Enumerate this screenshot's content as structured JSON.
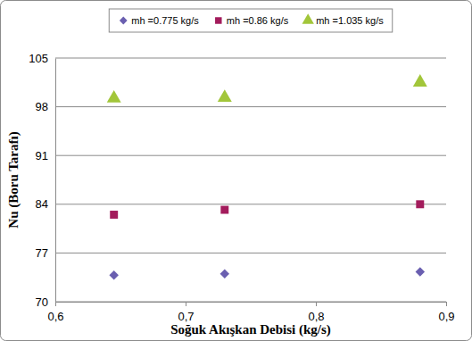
{
  "chart_data": {
    "type": "scatter",
    "x_label": "Soğuk Akışkan Debisi (kg/s)",
    "y_label": "Nu (Boru Tarafı)",
    "x": [
      0.645,
      0.73,
      0.88
    ],
    "series": [
      {
        "name": "mh =0.775 kg/s",
        "color": "#6a5fb0",
        "marker": "diamond",
        "values": [
          73.8,
          74.0,
          74.3
        ]
      },
      {
        "name": "mh =0.86 kg/s",
        "color": "#a31c5c",
        "marker": "square",
        "values": [
          82.5,
          83.2,
          84.0
        ]
      },
      {
        "name": "mh =1.035 kg/s",
        "color": "#a2c63a",
        "marker": "triangle",
        "values": [
          99.2,
          99.3,
          101.5
        ]
      }
    ],
    "xlim": [
      0.6,
      0.9
    ],
    "xticks": [
      {
        "value": 0.6,
        "label": "0,6"
      },
      {
        "value": 0.7,
        "label": "0,7"
      },
      {
        "value": 0.8,
        "label": "0,8"
      },
      {
        "value": 0.9,
        "label": "0,9"
      }
    ],
    "ylim": [
      70,
      105
    ],
    "yticks": [
      70,
      77,
      84,
      91,
      98,
      105
    ],
    "grid": true,
    "legend": "top"
  }
}
